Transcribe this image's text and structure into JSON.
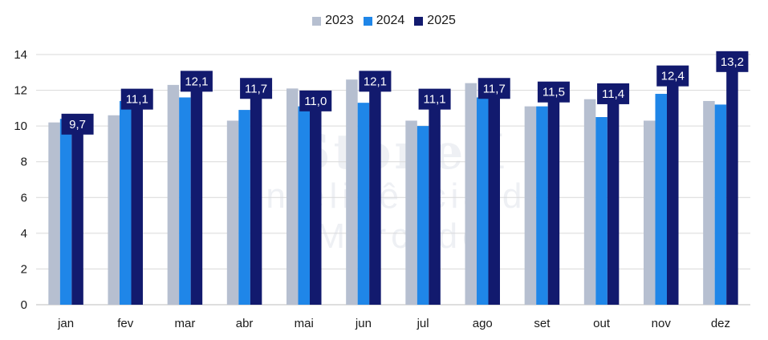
{
  "watermark": {
    "line1": "StoneX",
    "line2": "Inteligência de Mercado"
  },
  "chart_data": {
    "type": "bar",
    "categories": [
      "jan",
      "fev",
      "mar",
      "abr",
      "mai",
      "jun",
      "jul",
      "ago",
      "set",
      "out",
      "nov",
      "dez"
    ],
    "series": [
      {
        "name": "2023",
        "color": "#b6bfd0",
        "values": [
          10.2,
          10.6,
          12.3,
          10.3,
          12.1,
          12.6,
          10.3,
          12.4,
          11.1,
          11.5,
          10.3,
          11.4
        ]
      },
      {
        "name": "2024",
        "color": "#1f86e8",
        "values": [
          10.4,
          11.4,
          11.6,
          10.9,
          11.1,
          11.3,
          10.0,
          11.6,
          11.1,
          10.5,
          11.8,
          11.2
        ]
      },
      {
        "name": "2025",
        "color": "#121a6e",
        "values": [
          9.7,
          11.1,
          12.1,
          11.7,
          11.0,
          12.1,
          11.1,
          11.7,
          11.5,
          11.4,
          12.4,
          13.2
        ]
      }
    ],
    "data_labels": [
      "9,7",
      "11,1",
      "12,1",
      "11,7",
      "11,0",
      "12,1",
      "11,1",
      "11,7",
      "11,5",
      "11,4",
      "12,4",
      "13,2"
    ],
    "ylim": [
      0,
      14
    ],
    "yticks": [
      0,
      2,
      4,
      6,
      8,
      10,
      12,
      14
    ],
    "grid": true,
    "legend_position": "top-center"
  }
}
